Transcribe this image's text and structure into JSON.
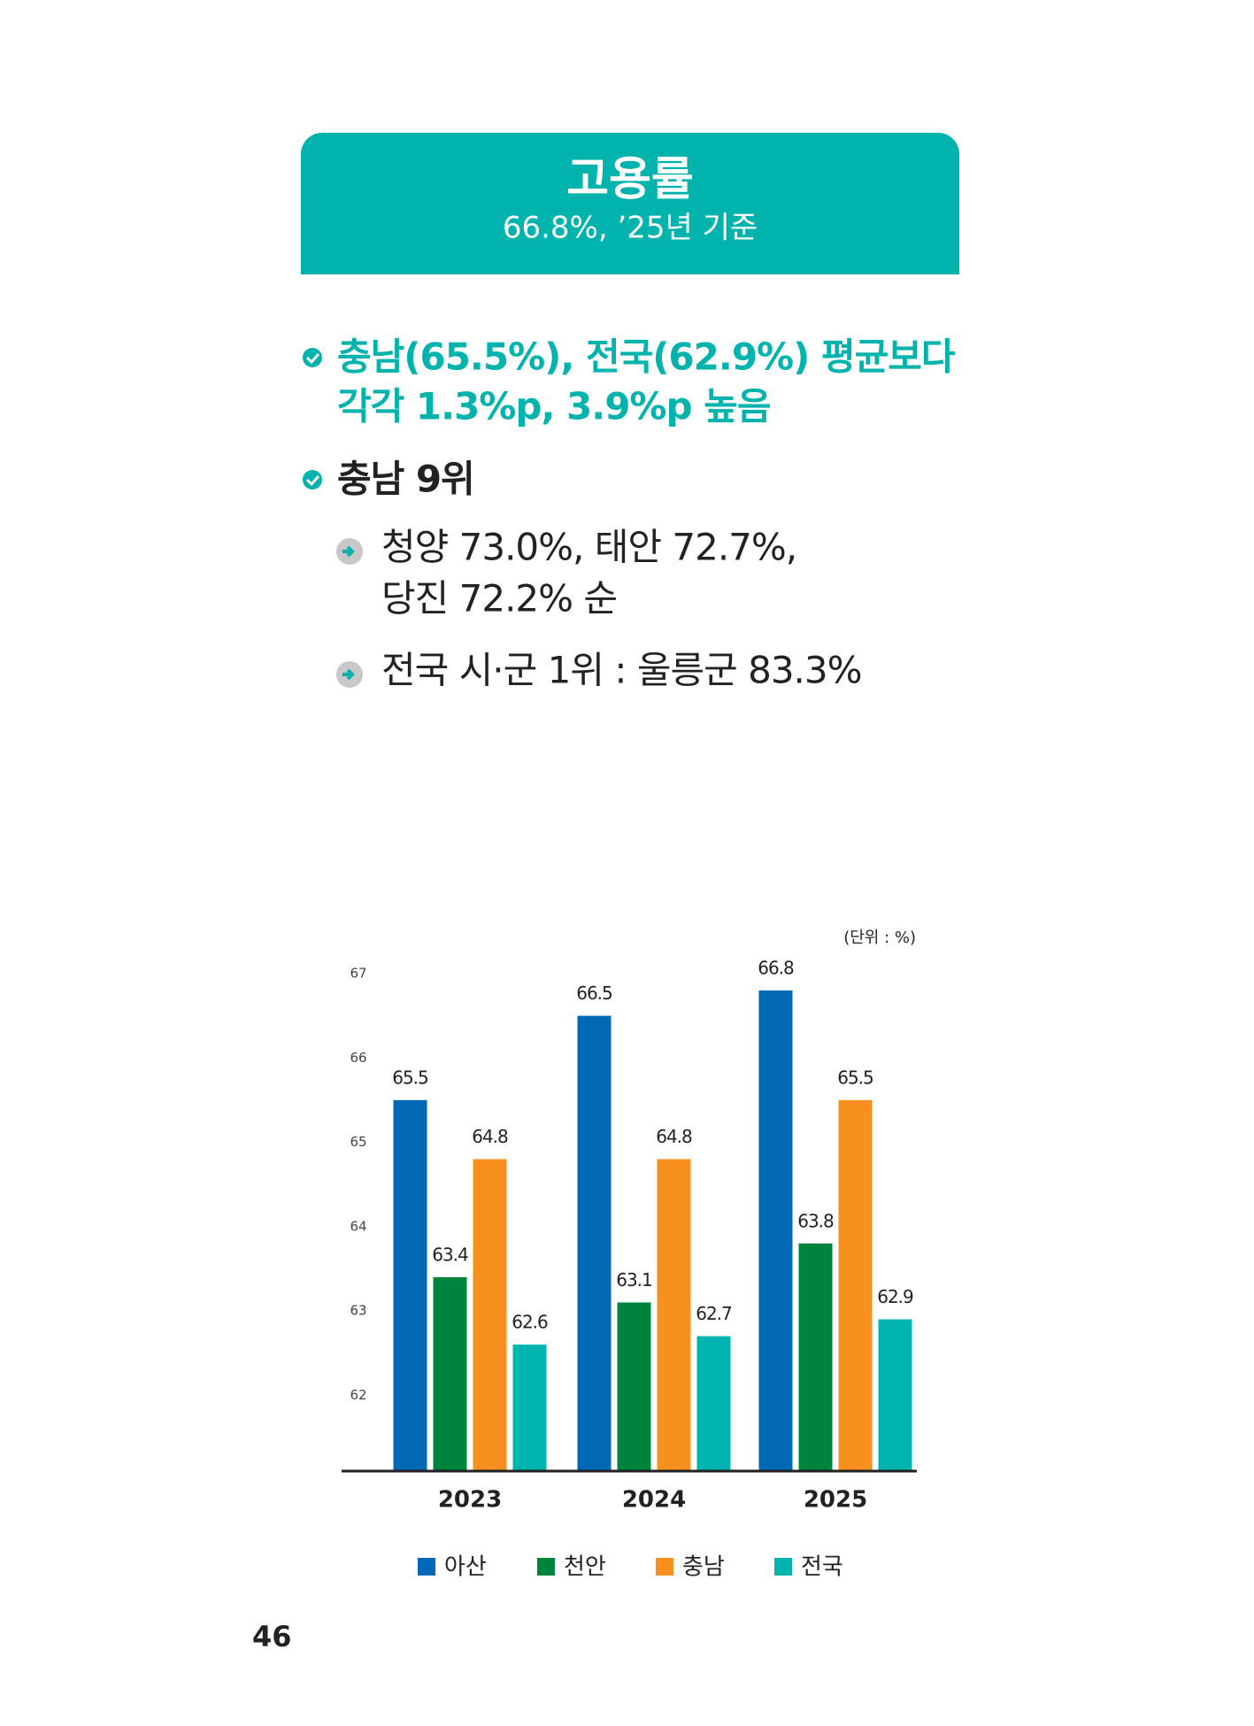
{
  "banner": {
    "title": "고용률",
    "subtitle": "66.8%, ’25년 기준"
  },
  "bullets": [
    {
      "lines": [
        "충남(65.5%), 전국(62.9%) 평균보다",
        "각각 1.3%p, 3.9%p 높음"
      ]
    },
    {
      "lines": [
        "충남 9위"
      ],
      "sub": [
        {
          "lines": [
            "청양 73.0%, 태안 72.7%,",
            "당진 72.2% 순"
          ]
        },
        {
          "lines": [
            "전국 시·군 1위 : 울릉군 83.3%"
          ]
        }
      ]
    }
  ],
  "chart_data": {
    "type": "bar",
    "unit": "(단위 : %)",
    "categories": [
      "2023",
      "2024",
      "2025"
    ],
    "series": [
      {
        "name": "아산",
        "color": "#0068b4",
        "values": [
          65.5,
          66.5,
          66.8
        ]
      },
      {
        "name": "천안",
        "color": "#00843d",
        "values": [
          63.4,
          63.1,
          63.8
        ]
      },
      {
        "name": "충남",
        "color": "#f7901e",
        "values": [
          64.8,
          64.8,
          65.5
        ]
      },
      {
        "name": "전국",
        "color": "#00b5b0",
        "values": [
          62.6,
          62.7,
          62.9
        ]
      }
    ],
    "ylim": [
      61.1,
      67
    ],
    "yticks": [
      62,
      63,
      64,
      65,
      66,
      67
    ]
  },
  "page_number": "46"
}
